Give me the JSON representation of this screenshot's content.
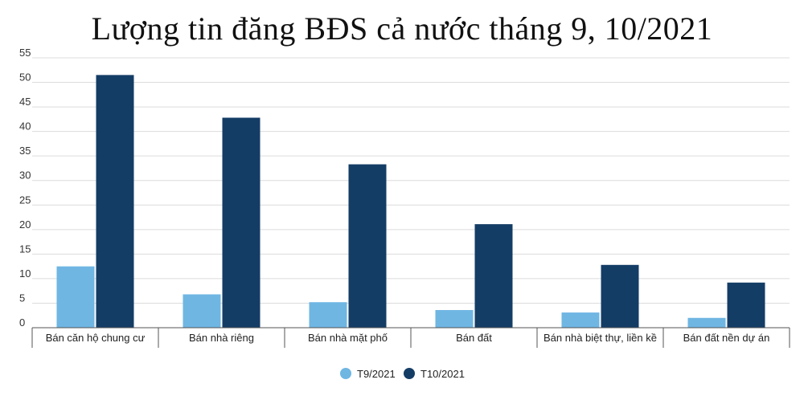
{
  "chart_data": {
    "type": "bar",
    "title": "Lượng tin đăng BĐS cả nước tháng 9, 10/2021",
    "xlabel": "",
    "ylabel": "",
    "ylim": [
      0,
      55
    ],
    "yticks": [
      0,
      5,
      10,
      15,
      20,
      25,
      30,
      35,
      40,
      45,
      50,
      55
    ],
    "grid": true,
    "legend_position": "bottom-center",
    "categories": [
      "Bán căn hộ chung cư",
      "Bán nhà riêng",
      "Bán nhà mặt phố",
      "Bán đất",
      "Bán nhà biệt thự, liền kề",
      "Bán đất nền dự án"
    ],
    "series": [
      {
        "name": "T9/2021",
        "color": "#6fb6e3",
        "values": [
          12.5,
          6.8,
          5.2,
          3.6,
          3.1,
          2.0
        ]
      },
      {
        "name": "T10/2021",
        "color": "#143d66",
        "values": [
          51.5,
          42.8,
          33.3,
          21.1,
          12.8,
          9.2
        ]
      }
    ]
  }
}
